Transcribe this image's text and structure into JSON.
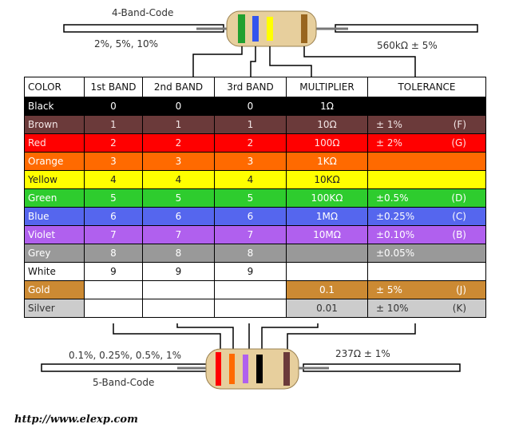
{
  "top": {
    "title": "4-Band-Code",
    "left_label": "2%, 5%, 10%",
    "right_label": "560kΩ ± 5%"
  },
  "bottom": {
    "title": "5-Band-Code",
    "left_label": "0.1%, 0.25%, 0.5%, 1%",
    "right_label": "237Ω ± 1%"
  },
  "url": "http://www.elexp.com",
  "table": {
    "headers": [
      "COLOR",
      "1st BAND",
      "2nd BAND",
      "3rd BAND",
      "MULTIPLIER",
      "TOLERANCE"
    ],
    "rows": [
      {
        "color": "Black",
        "b1": "0",
        "b2": "0",
        "b3": "0",
        "mult": "1Ω",
        "tol": "",
        "code": "",
        "bg": "#000000",
        "fg": "#ffffff",
        "mult_bg": "#000000",
        "tol_bg": "#000000"
      },
      {
        "color": "Brown",
        "b1": "1",
        "b2": "1",
        "b3": "1",
        "mult": "10Ω",
        "tol": "±   1%",
        "code": "(F)",
        "bg": "#6b3a3a",
        "fg": "#f2e6e6",
        "mult_bg": "#6b3a3a",
        "tol_bg": "#6b3a3a"
      },
      {
        "color": "Red",
        "b1": "2",
        "b2": "2",
        "b3": "2",
        "mult": "100Ω",
        "tol": "±   2%",
        "code": "(G)",
        "bg": "#ff0000",
        "fg": "#ffe0e0",
        "mult_bg": "#ff0000",
        "tol_bg": "#ff0000"
      },
      {
        "color": "Orange",
        "b1": "3",
        "b2": "3",
        "b3": "3",
        "mult": "1KΩ",
        "tol": "",
        "code": "",
        "bg": "#ff6a00",
        "fg": "#ffffff",
        "mult_bg": "#ff6a00",
        "tol_bg": "#ff6a00"
      },
      {
        "color": "Yellow",
        "b1": "4",
        "b2": "4",
        "b3": "4",
        "mult": "10KΩ",
        "tol": "",
        "code": "",
        "bg": "#ffff00",
        "fg": "#222222",
        "mult_bg": "#ffff00",
        "tol_bg": "#ffff00"
      },
      {
        "color": "Green",
        "b1": "5",
        "b2": "5",
        "b3": "5",
        "mult": "100KΩ",
        "tol": "±0.5%",
        "code": "(D)",
        "bg": "#2ecc2e",
        "fg": "#ffffff",
        "mult_bg": "#2ecc2e",
        "tol_bg": "#2ecc2e"
      },
      {
        "color": "Blue",
        "b1": "6",
        "b2": "6",
        "b3": "6",
        "mult": "1MΩ",
        "tol": "±0.25%",
        "code": "(C)",
        "bg": "#5566ee",
        "fg": "#ffffff",
        "mult_bg": "#5566ee",
        "tol_bg": "#5566ee"
      },
      {
        "color": "Violet",
        "b1": "7",
        "b2": "7",
        "b3": "7",
        "mult": "10MΩ",
        "tol": "±0.10%",
        "code": "(B)",
        "bg": "#b060ee",
        "fg": "#ffffff",
        "mult_bg": "#b060ee",
        "tol_bg": "#b060ee"
      },
      {
        "color": "Grey",
        "b1": "8",
        "b2": "8",
        "b3": "8",
        "mult": "",
        "tol": "±0.05%",
        "code": "",
        "bg": "#999999",
        "fg": "#ffffff",
        "mult_bg": "#999999",
        "tol_bg": "#999999"
      },
      {
        "color": "White",
        "b1": "9",
        "b2": "9",
        "b3": "9",
        "mult": "",
        "tol": "",
        "code": "",
        "bg": "#ffffff",
        "fg": "#111111",
        "mult_bg": "#ffffff",
        "tol_bg": "#ffffff"
      },
      {
        "color": "Gold",
        "b1": "",
        "b2": "",
        "b3": "",
        "mult": "0.1",
        "tol": "±   5%",
        "code": "(J)",
        "bg": "#cc8a33",
        "fg": "#ffffff",
        "mult_bg": "#cc8a33",
        "tol_bg": "#cc8a33"
      },
      {
        "color": "Silver",
        "b1": "",
        "b2": "",
        "b3": "",
        "mult": "0.01",
        "tol": "±   10%",
        "code": "(K)",
        "bg": "#cccccc",
        "fg": "#333333",
        "mult_bg": "#cccccc",
        "tol_bg": "#cccccc"
      }
    ]
  }
}
